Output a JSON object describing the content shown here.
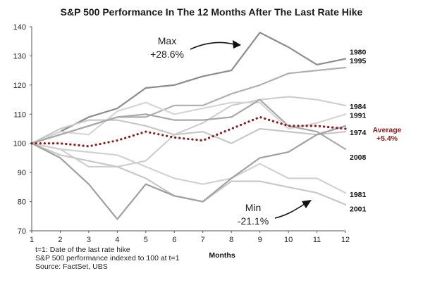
{
  "chart_data": {
    "type": "line",
    "title": "S&P 500 Performance In The 12 Months After The Last Rate Hike",
    "xlabel": "Months",
    "ylabel": "",
    "x": [
      1,
      2,
      3,
      4,
      5,
      6,
      7,
      8,
      9,
      10,
      11,
      12
    ],
    "ylim": [
      70,
      140
    ],
    "yticks": [
      70,
      80,
      90,
      100,
      110,
      120,
      130,
      140
    ],
    "grid": false,
    "series": [
      {
        "name": "1980",
        "color": "#8c8c8c",
        "values": [
          100,
          104,
          109,
          112,
          119,
          120,
          123,
          125,
          138,
          133,
          127,
          129
        ]
      },
      {
        "name": "1995",
        "color": "#b0b0b0",
        "values": [
          100,
          103,
          106,
          109,
          109,
          113,
          113,
          117,
          120,
          124,
          125,
          126
        ]
      },
      {
        "name": "1984",
        "color": "#cfcfcf",
        "values": [
          100,
          98,
          92,
          92,
          94,
          103,
          107,
          113,
          115,
          116,
          115,
          113
        ]
      },
      {
        "name": "1991",
        "color": "#d6d6d6",
        "values": [
          100,
          104,
          103,
          111,
          114,
          110,
          112,
          114,
          114,
          105,
          107,
          110
        ]
      },
      {
        "name": "1974",
        "color": "#c8c8c8",
        "values": [
          100,
          105,
          108,
          108,
          106,
          103,
          104,
          100,
          105,
          104,
          103,
          104
        ]
      },
      {
        "name": "2008",
        "color": "#a8a8a8",
        "values": [
          100,
          103,
          106,
          109,
          110,
          108,
          108,
          109,
          115,
          106,
          104,
          98
        ]
      },
      {
        "name": "1981",
        "color": "#d2d2d2",
        "values": [
          100,
          98,
          97,
          96,
          92,
          88,
          86,
          88,
          93,
          88,
          88,
          83
        ]
      },
      {
        "name": "2001",
        "color": "#c8c8c8",
        "values": [
          100,
          96,
          94,
          92,
          88,
          82,
          80,
          87,
          87,
          85,
          83,
          79
        ]
      },
      {
        "name": "",
        "color": "#a0a0a0",
        "values": [
          100,
          95,
          86,
          74,
          86,
          82,
          80,
          88,
          95,
          97,
          103,
          106
        ]
      },
      {
        "name": "Average",
        "color": "#8b1a1a",
        "style": "dotted",
        "values": [
          100,
          100,
          99,
          101,
          104,
          102,
          101,
          105,
          109,
          106,
          106,
          105
        ]
      }
    ],
    "annotations": {
      "max_label": "Max",
      "max_value": "+28.6%",
      "min_label": "Min",
      "min_value": "-21.1%",
      "avg_label": "Average",
      "avg_value": "+5.4%"
    }
  },
  "footnotes": [
    "t=1: Date of the last rate hike",
    "S&P 500 performance indexed to 100 at t=1",
    "Source: FactSet, UBS"
  ]
}
